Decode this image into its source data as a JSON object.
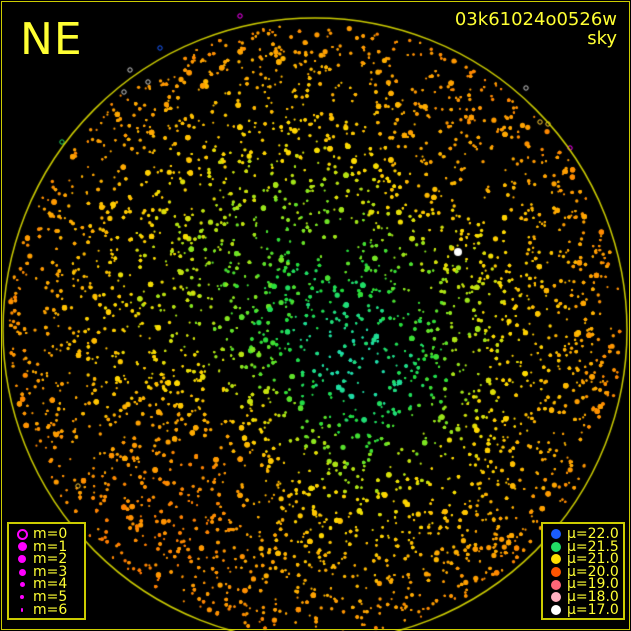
{
  "direction_label": "NE",
  "frame_id": "03k61024o0526w",
  "frame_type": "sky",
  "magnitude_legend": [
    {
      "label": "m=0",
      "hollow": true
    },
    {
      "label": "m=1"
    },
    {
      "label": "m=2"
    },
    {
      "label": "m=3"
    },
    {
      "label": "m=4"
    },
    {
      "label": "m=5"
    },
    {
      "label": "m=6"
    }
  ],
  "brightness_legend": [
    {
      "label": "μ=22.0",
      "color": "#1a5cff"
    },
    {
      "label": "μ=21.5",
      "color": "#22dd66"
    },
    {
      "label": "μ=21.0",
      "color": "#ffdd00"
    },
    {
      "label": "μ=20.0",
      "color": "#ff5500"
    },
    {
      "label": "μ=19.0",
      "color": "#ff6677"
    },
    {
      "label": "μ=18.0",
      "color": "#ffb0c0"
    },
    {
      "label": "μ=17.0",
      "color": "#ffffff"
    }
  ],
  "colors": {
    "horizon": "#cccc00",
    "text": "#ffff33",
    "legend_marker": "#ff00ff",
    "background": "#000000"
  }
}
